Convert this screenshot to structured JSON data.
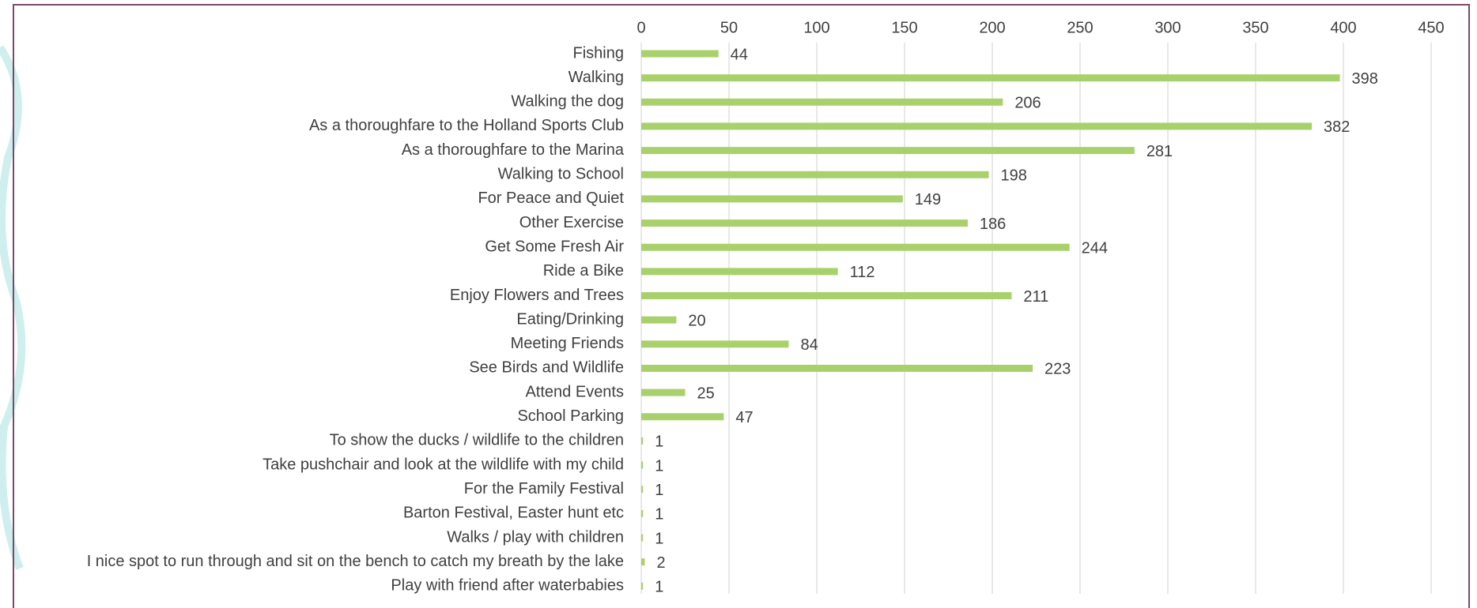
{
  "chart_data": {
    "type": "bar",
    "orientation": "horizontal",
    "categories": [
      "Fishing",
      "Walking",
      "Walking the dog",
      "As a thoroughfare to the Holland Sports Club",
      "As a thoroughfare to the Marina",
      "Walking to School",
      "For Peace and Quiet",
      "Other Exercise",
      "Get Some Fresh Air",
      "Ride a Bike",
      "Enjoy Flowers and Trees",
      "Eating/Drinking",
      "Meeting Friends",
      "See Birds and Wildlife",
      "Attend Events",
      "School Parking",
      "To show the ducks / wildlife to the children",
      "Take pushchair and look at the wildlife with my child",
      "For the Family Festival",
      "Barton Festival, Easter hunt etc",
      "Walks / play with children",
      "I nice spot to run through and sit on the bench to catch my breath by the lake",
      "Play with friend after waterbabies"
    ],
    "values": [
      44,
      398,
      206,
      382,
      281,
      198,
      149,
      186,
      244,
      112,
      211,
      20,
      84,
      223,
      25,
      47,
      1,
      1,
      1,
      1,
      1,
      2,
      1
    ],
    "color": "#a9d16b",
    "xlim": [
      0,
      450
    ],
    "xticks": [
      0,
      50,
      100,
      150,
      200,
      250,
      300,
      350,
      400,
      450
    ],
    "grid": true
  }
}
